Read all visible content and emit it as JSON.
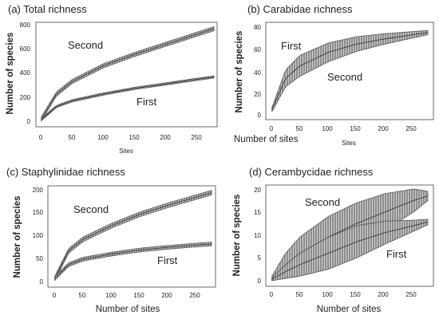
{
  "chart_data": [
    {
      "type": "area",
      "title": "(a) Total richness",
      "xlabel": "Sites",
      "ylabel": "Number of species",
      "xlim": [
        0,
        280
      ],
      "ylim": [
        0,
        850
      ],
      "x_ticks": [
        "0",
        "50",
        "100",
        "150",
        "200",
        "250"
      ],
      "y_ticks": [
        "0",
        "200",
        "400",
        "600",
        "800"
      ],
      "series": [
        {
          "name": "Second",
          "x": [
            1,
            25,
            50,
            100,
            150,
            200,
            250,
            275
          ],
          "y": [
            20,
            240,
            350,
            490,
            590,
            680,
            770,
            815
          ],
          "halfwidth": 18
        },
        {
          "name": "First",
          "x": [
            1,
            25,
            50,
            100,
            150,
            200,
            250,
            275
          ],
          "y": [
            15,
            130,
            180,
            240,
            290,
            330,
            370,
            390
          ],
          "halfwidth": 10
        }
      ]
    },
    {
      "type": "area",
      "title": "(b) Carabidae richness",
      "xlabel": "Number of sites",
      "xlabel_small": "Sites",
      "ylabel": "Number of species",
      "xlim": [
        0,
        280
      ],
      "ylim": [
        0,
        85
      ],
      "x_ticks": [
        "0",
        "50",
        "100",
        "150",
        "200",
        "250"
      ],
      "y_ticks": [
        "0",
        "20",
        "40",
        "60",
        "80"
      ],
      "series": [
        {
          "name": "First",
          "x": [
            1,
            25,
            50,
            100,
            150,
            200,
            250,
            275
          ],
          "y": [
            5,
            35,
            47,
            60,
            68,
            73,
            77,
            79
          ],
          "halfwidth": [
            2,
            8,
            10,
            9,
            7,
            5,
            3,
            2
          ]
        },
        {
          "name": "Second",
          "x": [
            1,
            25,
            50,
            100,
            150,
            200,
            250,
            275
          ],
          "y": [
            5,
            35,
            47,
            60,
            68,
            73,
            77,
            79
          ],
          "halfwidth": [
            2,
            8,
            10,
            9,
            7,
            5,
            3,
            2
          ]
        }
      ]
    },
    {
      "type": "area",
      "title": "(c) Staphylinidae richness",
      "xlabel": "Number of sites",
      "ylabel": "Number of species",
      "xlim": [
        0,
        280
      ],
      "ylim": [
        0,
        200
      ],
      "x_ticks": [
        "0",
        "50",
        "100",
        "150",
        "200",
        "250"
      ],
      "y_ticks": [
        "0",
        "50",
        "100",
        "150",
        "200"
      ],
      "series": [
        {
          "name": "Second",
          "x": [
            1,
            25,
            50,
            100,
            150,
            200,
            250,
            275
          ],
          "y": [
            5,
            65,
            90,
            120,
            145,
            165,
            183,
            192
          ],
          "halfwidth": 5
        },
        {
          "name": "First",
          "x": [
            1,
            25,
            50,
            100,
            150,
            200,
            250,
            275
          ],
          "y": [
            5,
            35,
            47,
            58,
            67,
            73,
            78,
            80
          ],
          "halfwidth": 4
        }
      ]
    },
    {
      "type": "area",
      "title": "(d) Cerambycidae richness",
      "xlabel": "Number of sites",
      "ylabel": "Number of species",
      "xlim": [
        0,
        280
      ],
      "ylim": [
        0,
        20
      ],
      "x_ticks": [
        "0",
        "50",
        "100",
        "150",
        "200",
        "250"
      ],
      "y_ticks": [
        "0",
        "5",
        "10",
        "15",
        "20"
      ],
      "series": [
        {
          "name": "Second",
          "x": [
            1,
            25,
            50,
            100,
            150,
            200,
            250,
            275
          ],
          "y": [
            0.5,
            3.5,
            6,
            9.5,
            12.5,
            15,
            17.5,
            18.5
          ],
          "halfwidth": [
            0.5,
            2.5,
            3.5,
            4.5,
            4.5,
            4,
            2.5,
            1
          ]
        },
        {
          "name": "First",
          "x": [
            1,
            25,
            50,
            100,
            150,
            200,
            250,
            275
          ],
          "y": [
            0.3,
            2,
            3.5,
            6,
            8.5,
            10.5,
            12,
            12.8
          ],
          "halfwidth": [
            0.3,
            1.5,
            2.5,
            3.5,
            3.5,
            2.5,
            1.2,
            0.6
          ]
        }
      ]
    }
  ],
  "colors": {
    "band_fill": "#8c8c8c",
    "band_edge": "#555555",
    "hatch": "#ffffff",
    "axis": "#444444",
    "text": "#222222"
  }
}
